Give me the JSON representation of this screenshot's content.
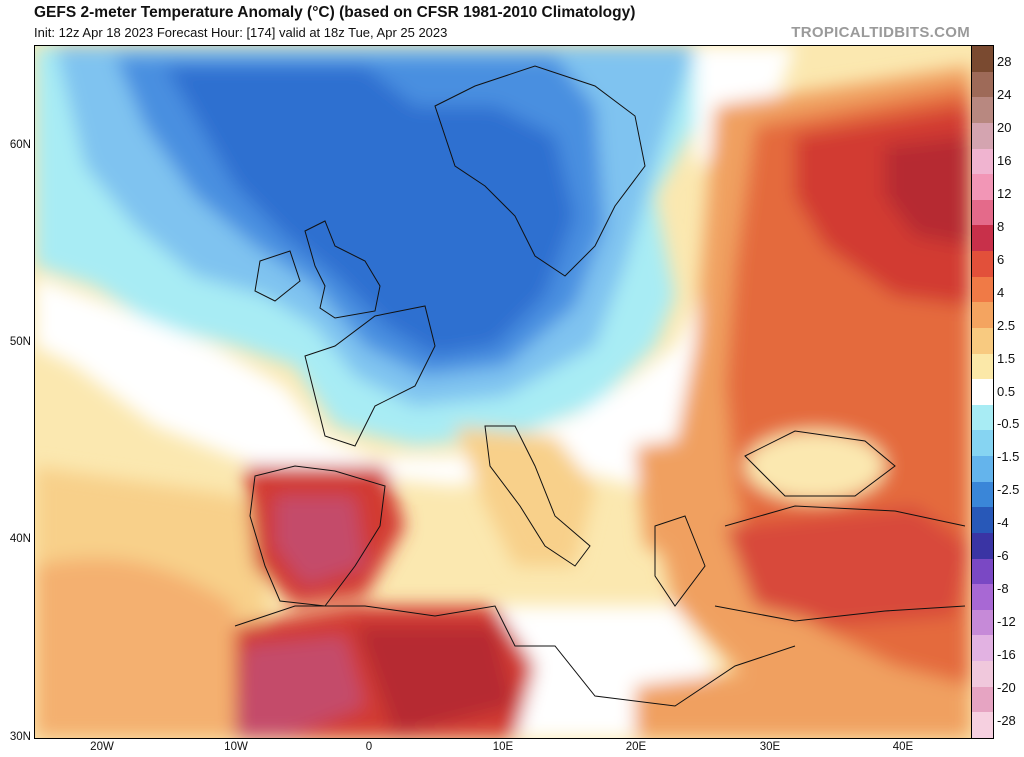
{
  "header": {
    "title": "GEFS 2-meter Temperature Anomaly (°C) (based on CFSR 1981-2010 Climatology)",
    "subtitle": "Init: 12z Apr 18 2023   Forecast Hour: [174]   valid at 18z Tue, Apr 25 2023",
    "brand": "TROPICALTIDBITS.COM"
  },
  "map": {
    "lat_labels": [
      "60N",
      "50N",
      "40N",
      "30N"
    ],
    "lon_labels": [
      "20W",
      "10W",
      "0",
      "10E",
      "20E",
      "30E",
      "40E"
    ],
    "region": "Europe / North Africa / Near East",
    "colors": {
      "deep_blue": "#2f6fd0",
      "mid_blue": "#4a8fe0",
      "light_blue": "#7fc3f0",
      "cyan": "#a8ecf4",
      "white": "#ffffff",
      "pale_yellow": "#fbe8b0",
      "tan": "#f8d08a",
      "orange": "#f0a060",
      "red_orange": "#e46a3c",
      "red": "#d23a30",
      "dark_red": "#b62a30",
      "pink_red": "#c44c6a"
    }
  },
  "legend": {
    "labels": [
      "28",
      "24",
      "20",
      "16",
      "12",
      "8",
      "6",
      "4",
      "2.5",
      "1.5",
      "0.5",
      "-0.5",
      "-1.5",
      "-2.5",
      "-4",
      "-6",
      "-8",
      "-12",
      "-16",
      "-20",
      "-28"
    ],
    "colors": [
      "#7a4a30",
      "#9e6a58",
      "#b88880",
      "#d4a4b0",
      "#f0b4d0",
      "#f296b6",
      "#e46a8a",
      "#c8304a",
      "#e2503a",
      "#f07a46",
      "#f4a460",
      "#f8ca80",
      "#fbe8a8",
      "#ffffff",
      "#a8ecf4",
      "#86d4f2",
      "#64b4ec",
      "#3a86d8",
      "#2858b8",
      "#3a34a4",
      "#7a48c4",
      "#a868d4",
      "#c68ad8",
      "#e2b2e2",
      "#f0c8dc",
      "#e6a4c2",
      "#f6d0e0"
    ]
  }
}
